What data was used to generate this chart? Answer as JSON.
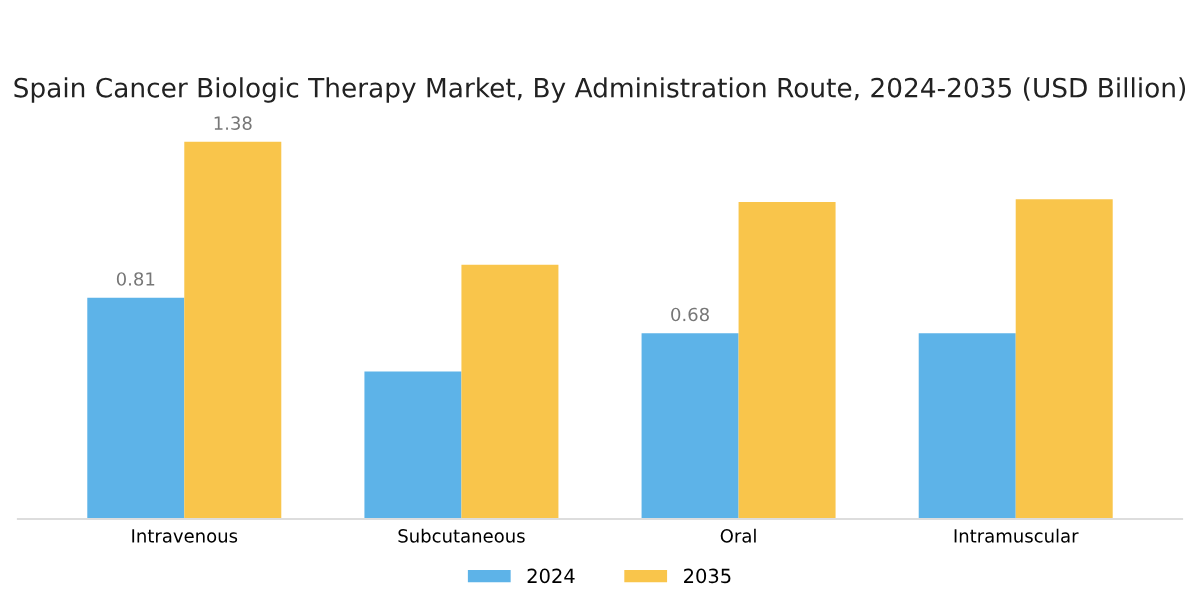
{
  "chart_data": {
    "type": "bar",
    "title": "Spain Cancer Biologic Therapy Market, By Administration Route, 2024-2035 (USD Billion)",
    "categories": [
      "Intravenous",
      "Subcutaneous",
      "Oral",
      "Intramuscular"
    ],
    "series": [
      {
        "name": "2024",
        "color": "#5db3e8",
        "values": [
          0.81,
          0.54,
          0.68,
          0.68
        ],
        "value_labels": [
          "0.81",
          null,
          "0.68",
          null
        ]
      },
      {
        "name": "2035",
        "color": "#f9c54b",
        "values": [
          1.38,
          0.93,
          1.16,
          1.17
        ],
        "value_labels": [
          "1.38",
          null,
          null,
          null
        ]
      }
    ],
    "grid": false,
    "legend": "bottom"
  }
}
